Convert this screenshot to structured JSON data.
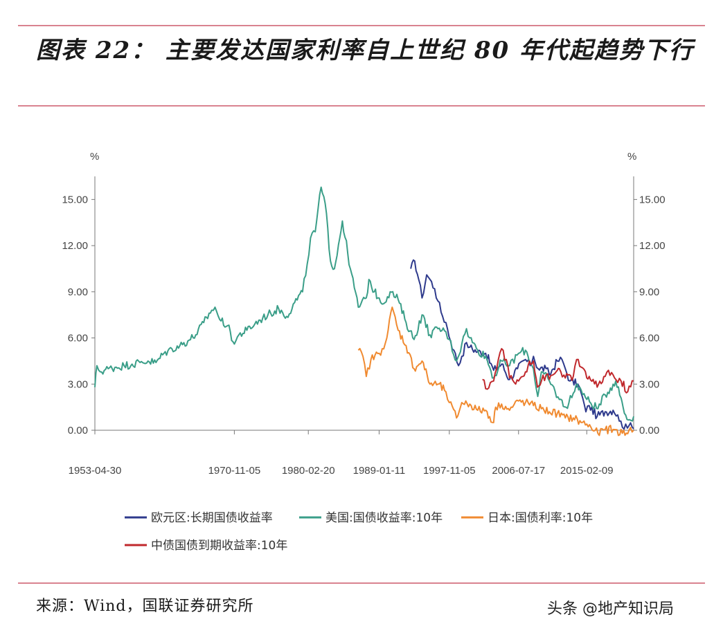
{
  "header": {
    "title": "图表 22：  主要发达国家利率自上世纪 80 年代起趋势下行"
  },
  "footer": {
    "source": "来源：Wind，国联证券研究所",
    "watermark": "头条 @地产知识局"
  },
  "chart_data": {
    "type": "line",
    "title": "",
    "ylabel_left": "%",
    "ylabel_right": "%",
    "ylim": [
      0,
      16.5
    ],
    "yticks": [
      "0.00",
      "3.00",
      "6.00",
      "9.00",
      "12.00",
      "15.00"
    ],
    "yticks_values": [
      0,
      3,
      6,
      9,
      12,
      15
    ],
    "xlim": [
      "1953-04-30",
      "2020-12-31"
    ],
    "xticks": [
      "1953-04-30",
      "1970-11-05",
      "1980-02-20",
      "1989-01-11",
      "1997-11-05",
      "2006-07-17",
      "2015-02-09"
    ],
    "legend_position": "bottom",
    "grid": false,
    "series": [
      {
        "name": "欧元区:长期国债收益率",
        "color": "#2e3a8c",
        "points": [
          [
            "1993-01-01",
            10.5
          ],
          [
            "1993-07-01",
            11.0
          ],
          [
            "1994-01-01",
            9.8
          ],
          [
            "1994-06-01",
            8.6
          ],
          [
            "1995-01-01",
            10.1
          ],
          [
            "1995-06-01",
            9.8
          ],
          [
            "1996-01-01",
            9.2
          ],
          [
            "1996-06-01",
            8.4
          ],
          [
            "1997-01-01",
            7.4
          ],
          [
            "1997-06-01",
            7.0
          ],
          [
            "1998-01-01",
            5.8
          ],
          [
            "1998-06-01",
            5.2
          ],
          [
            "1999-01-01",
            4.2
          ],
          [
            "1999-06-01",
            4.8
          ],
          [
            "2000-01-01",
            5.7
          ],
          [
            "2000-06-01",
            5.4
          ],
          [
            "2001-06-01",
            5.1
          ],
          [
            "2002-06-01",
            5.0
          ],
          [
            "2003-06-01",
            3.9
          ],
          [
            "2004-06-01",
            4.3
          ],
          [
            "2005-06-01",
            3.3
          ],
          [
            "2006-06-01",
            4.0
          ],
          [
            "2007-06-01",
            4.6
          ],
          [
            "2008-01-01",
            4.2
          ],
          [
            "2008-06-01",
            4.8
          ],
          [
            "2009-01-01",
            4.0
          ],
          [
            "2010-01-01",
            4.0
          ],
          [
            "2010-06-01",
            3.6
          ],
          [
            "2011-06-01",
            4.5
          ],
          [
            "2012-01-01",
            4.6
          ],
          [
            "2012-06-01",
            4.0
          ],
          [
            "2013-01-01",
            3.2
          ],
          [
            "2014-01-01",
            3.0
          ],
          [
            "2014-06-01",
            2.4
          ],
          [
            "2015-01-01",
            1.2
          ],
          [
            "2015-06-01",
            1.6
          ],
          [
            "2016-06-01",
            0.9
          ],
          [
            "2017-06-01",
            1.2
          ],
          [
            "2018-06-01",
            1.3
          ],
          [
            "2019-01-01",
            1.0
          ],
          [
            "2019-08-01",
            0.2
          ],
          [
            "2020-01-01",
            0.4
          ],
          [
            "2020-06-01",
            0.3
          ],
          [
            "2020-12-31",
            0.1
          ]
        ]
      },
      {
        "name": "美国:国债收益率:10年",
        "color": "#3a9e88",
        "points": [
          [
            "1953-04-30",
            2.8
          ],
          [
            "1953-08-01",
            4.2
          ],
          [
            "1954-01-01",
            3.8
          ],
          [
            "1955-01-01",
            4.0
          ],
          [
            "1956-01-01",
            4.1
          ],
          [
            "1957-01-01",
            4.2
          ],
          [
            "1958-01-01",
            4.3
          ],
          [
            "1959-01-01",
            4.4
          ],
          [
            "1960-01-01",
            4.5
          ],
          [
            "1961-01-01",
            4.4
          ],
          [
            "1962-01-01",
            5.0
          ],
          [
            "1963-01-01",
            5.3
          ],
          [
            "1964-01-01",
            5.5
          ],
          [
            "1965-01-01",
            5.8
          ],
          [
            "1966-01-01",
            6.2
          ],
          [
            "1967-01-01",
            7.0
          ],
          [
            "1968-01-01",
            7.8
          ],
          [
            "1968-06-01",
            8.0
          ],
          [
            "1969-01-01",
            7.2
          ],
          [
            "1970-01-01",
            6.8
          ],
          [
            "1970-11-05",
            5.6
          ],
          [
            "1971-06-01",
            6.2
          ],
          [
            "1972-06-01",
            6.5
          ],
          [
            "1973-06-01",
            6.9
          ],
          [
            "1974-06-01",
            7.3
          ],
          [
            "1975-06-01",
            7.6
          ],
          [
            "1976-06-01",
            7.9
          ],
          [
            "1977-06-01",
            7.4
          ],
          [
            "1978-06-01",
            8.3
          ],
          [
            "1979-06-01",
            9.0
          ],
          [
            "1980-01-01",
            10.8
          ],
          [
            "1980-06-01",
            12.5
          ],
          [
            "1981-01-01",
            12.9
          ],
          [
            "1981-09-30",
            15.8
          ],
          [
            "1982-06-01",
            14.1
          ],
          [
            "1982-12-01",
            11.0
          ],
          [
            "1983-06-01",
            10.5
          ],
          [
            "1984-06-01",
            13.6
          ],
          [
            "1985-06-01",
            10.5
          ],
          [
            "1986-06-01",
            8.0
          ],
          [
            "1987-06-01",
            8.6
          ],
          [
            "1987-10-01",
            9.8
          ],
          [
            "1988-06-01",
            9.0
          ],
          [
            "1989-01-11",
            8.6
          ],
          [
            "1989-06-01",
            8.2
          ],
          [
            "1990-06-01",
            9.0
          ],
          [
            "1991-06-01",
            8.5
          ],
          [
            "1992-06-01",
            7.0
          ],
          [
            "1993-06-01",
            5.9
          ],
          [
            "1994-06-01",
            7.5
          ],
          [
            "1995-06-01",
            6.2
          ],
          [
            "1996-06-01",
            6.6
          ],
          [
            "1997-06-01",
            6.4
          ],
          [
            "1997-11-05",
            5.9
          ],
          [
            "1998-10-01",
            4.5
          ],
          [
            "1999-06-01",
            5.6
          ],
          [
            "2000-01-01",
            6.6
          ],
          [
            "2000-06-01",
            6.0
          ],
          [
            "2001-06-01",
            5.2
          ],
          [
            "2002-06-01",
            4.8
          ],
          [
            "2003-06-01",
            3.4
          ],
          [
            "2004-06-01",
            4.5
          ],
          [
            "2005-06-01",
            4.2
          ],
          [
            "2006-07-17",
            5.0
          ],
          [
            "2007-06-01",
            5.2
          ],
          [
            "2008-06-01",
            4.0
          ],
          [
            "2008-12-15",
            2.2
          ],
          [
            "2009-06-01",
            3.8
          ],
          [
            "2010-06-01",
            3.2
          ],
          [
            "2011-09-01",
            2.0
          ],
          [
            "2012-07-01",
            1.5
          ],
          [
            "2013-06-01",
            2.4
          ],
          [
            "2013-12-01",
            3.0
          ],
          [
            "2014-06-01",
            2.6
          ],
          [
            "2015-02-09",
            2.0
          ],
          [
            "2016-07-01",
            1.4
          ],
          [
            "2017-06-01",
            2.3
          ],
          [
            "2018-10-01",
            3.2
          ],
          [
            "2019-06-01",
            2.1
          ],
          [
            "2019-09-01",
            1.5
          ],
          [
            "2020-03-01",
            0.7
          ],
          [
            "2020-12-31",
            0.9
          ]
        ]
      },
      {
        "name": "日本:国债利率:10年",
        "color": "#f08a30",
        "points": [
          [
            "1986-06-01",
            5.2
          ],
          [
            "1987-01-01",
            4.8
          ],
          [
            "1987-06-01",
            3.5
          ],
          [
            "1988-01-01",
            4.6
          ],
          [
            "1989-01-11",
            5.0
          ],
          [
            "1989-06-01",
            5.3
          ],
          [
            "1990-01-01",
            6.0
          ],
          [
            "1990-09-01",
            8.0
          ],
          [
            "1991-06-01",
            6.5
          ],
          [
            "1992-06-01",
            5.5
          ],
          [
            "1993-06-01",
            4.0
          ],
          [
            "1994-06-01",
            4.5
          ],
          [
            "1995-06-01",
            3.0
          ],
          [
            "1996-06-01",
            3.0
          ],
          [
            "1997-06-01",
            2.5
          ],
          [
            "1997-11-05",
            1.8
          ],
          [
            "1998-10-01",
            0.8
          ],
          [
            "1999-06-01",
            1.8
          ],
          [
            "2000-06-01",
            1.7
          ],
          [
            "2001-06-01",
            1.3
          ],
          [
            "2002-06-01",
            1.3
          ],
          [
            "2003-06-01",
            0.5
          ],
          [
            "2003-09-01",
            1.5
          ],
          [
            "2004-06-01",
            1.7
          ],
          [
            "2005-06-01",
            1.3
          ],
          [
            "2006-07-17",
            1.9
          ],
          [
            "2007-06-01",
            1.8
          ],
          [
            "2008-06-01",
            1.6
          ],
          [
            "2009-06-01",
            1.4
          ],
          [
            "2010-06-01",
            1.2
          ],
          [
            "2011-06-01",
            1.1
          ],
          [
            "2012-06-01",
            0.8
          ],
          [
            "2013-06-01",
            0.8
          ],
          [
            "2014-06-01",
            0.5
          ],
          [
            "2015-02-09",
            0.4
          ],
          [
            "2016-07-01",
            -0.2
          ],
          [
            "2017-06-01",
            0.05
          ],
          [
            "2018-06-01",
            0.05
          ],
          [
            "2019-08-01",
            -0.2
          ],
          [
            "2020-06-01",
            0.0
          ],
          [
            "2020-12-31",
            0.0
          ]
        ]
      },
      {
        "name": "中债国债到期收益率:10年",
        "color": "#c0282c",
        "points": [
          [
            "2002-01-01",
            3.3
          ],
          [
            "2002-06-01",
            2.7
          ],
          [
            "2003-01-01",
            3.1
          ],
          [
            "2003-06-01",
            3.2
          ],
          [
            "2004-01-01",
            4.6
          ],
          [
            "2004-06-01",
            5.3
          ],
          [
            "2005-01-01",
            4.6
          ],
          [
            "2005-06-01",
            3.4
          ],
          [
            "2006-01-01",
            3.1
          ],
          [
            "2006-07-17",
            3.2
          ],
          [
            "2007-06-01",
            3.8
          ],
          [
            "2007-12-01",
            4.5
          ],
          [
            "2008-06-01",
            4.5
          ],
          [
            "2008-12-01",
            2.8
          ],
          [
            "2009-06-01",
            3.2
          ],
          [
            "2010-01-01",
            3.6
          ],
          [
            "2010-06-01",
            3.3
          ],
          [
            "2011-06-01",
            3.9
          ],
          [
            "2011-09-01",
            4.0
          ],
          [
            "2012-06-01",
            3.4
          ],
          [
            "2013-06-01",
            3.5
          ],
          [
            "2013-11-01",
            4.6
          ],
          [
            "2014-06-01",
            4.1
          ],
          [
            "2015-02-09",
            3.4
          ],
          [
            "2015-06-01",
            3.5
          ],
          [
            "2016-06-01",
            2.8
          ],
          [
            "2017-06-01",
            3.5
          ],
          [
            "2017-11-01",
            3.9
          ],
          [
            "2018-06-01",
            3.6
          ],
          [
            "2019-01-01",
            3.1
          ],
          [
            "2019-06-01",
            3.2
          ],
          [
            "2020-04-01",
            2.5
          ],
          [
            "2020-12-31",
            3.2
          ]
        ]
      }
    ]
  }
}
